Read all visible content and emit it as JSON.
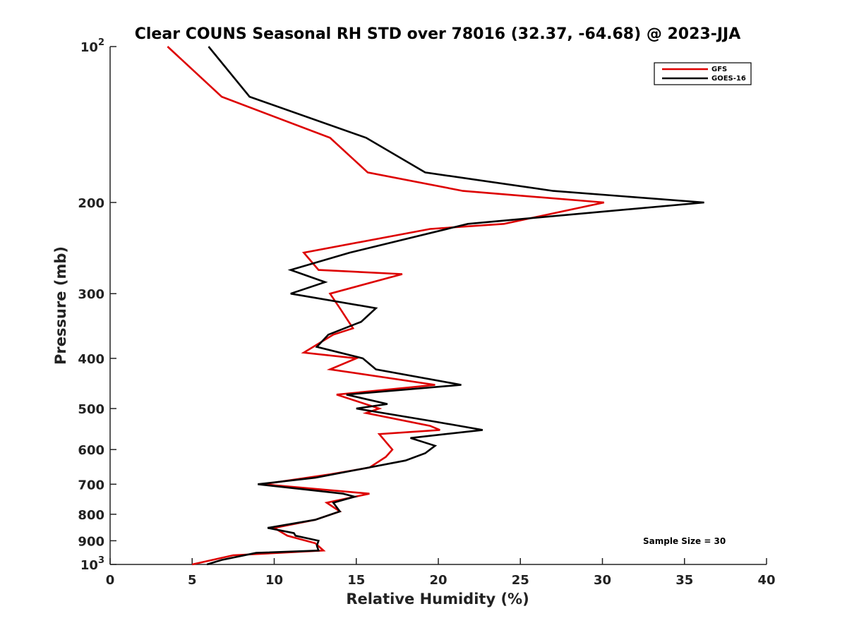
{
  "chart_data": {
    "type": "line",
    "title": "Clear COUNS Seasonal RH STD over 78016 (32.37, -64.68) @ 2023-JJA",
    "xlabel": "Relative Humidity (%)",
    "ylabel": "Pressure (mb)",
    "xlim": [
      0,
      40
    ],
    "ylim": [
      100,
      1000
    ],
    "yscale": "log",
    "y_reversed": true,
    "grid": false,
    "x_ticks": [
      0,
      5,
      10,
      15,
      20,
      25,
      30,
      35,
      40
    ],
    "y_ticks": [
      {
        "value": 100,
        "base": "10",
        "exp": "2"
      },
      {
        "value": 200,
        "label": "200"
      },
      {
        "value": 300,
        "label": "300"
      },
      {
        "value": 400,
        "label": "400"
      },
      {
        "value": 500,
        "label": "500"
      },
      {
        "value": 600,
        "label": "600"
      },
      {
        "value": 700,
        "label": "700"
      },
      {
        "value": 800,
        "label": "800"
      },
      {
        "value": 900,
        "label": "900"
      },
      {
        "value": 1000,
        "base": "10",
        "exp": "3"
      }
    ],
    "legend_position": "top-right",
    "annotation": "Sample Size = 30",
    "series": [
      {
        "name": "GFS",
        "color": "#dd0000",
        "points": [
          [
            3.5,
            100
          ],
          [
            6.8,
            125
          ],
          [
            13.4,
            150
          ],
          [
            15.7,
            175
          ],
          [
            21.5,
            190
          ],
          [
            30.1,
            200
          ],
          [
            24.0,
            220
          ],
          [
            19.5,
            225
          ],
          [
            11.8,
            250
          ],
          [
            12.7,
            270
          ],
          [
            17.8,
            275
          ],
          [
            13.4,
            300
          ],
          [
            14.0,
            320
          ],
          [
            14.8,
            350
          ],
          [
            13.6,
            360
          ],
          [
            11.8,
            390
          ],
          [
            15.0,
            400
          ],
          [
            13.4,
            420
          ],
          [
            19.8,
            450
          ],
          [
            13.8,
            470
          ],
          [
            16.4,
            500
          ],
          [
            15.6,
            510
          ],
          [
            19.5,
            540
          ],
          [
            20.1,
            550
          ],
          [
            16.4,
            560
          ],
          [
            17.0,
            590
          ],
          [
            17.2,
            600
          ],
          [
            16.8,
            620
          ],
          [
            15.8,
            650
          ],
          [
            13.4,
            670
          ],
          [
            9.3,
            700
          ],
          [
            15.8,
            730
          ],
          [
            13.2,
            760
          ],
          [
            14.0,
            790
          ],
          [
            12.5,
            820
          ],
          [
            10.0,
            850
          ],
          [
            10.8,
            880
          ],
          [
            12.5,
            910
          ],
          [
            13.0,
            940
          ],
          [
            7.5,
            960
          ],
          [
            5.0,
            1000
          ]
        ]
      },
      {
        "name": "GOES-16",
        "color": "#000000",
        "points": [
          [
            6.0,
            100
          ],
          [
            8.5,
            125
          ],
          [
            15.6,
            150
          ],
          [
            19.2,
            175
          ],
          [
            27.0,
            190
          ],
          [
            36.2,
            200
          ],
          [
            21.8,
            220
          ],
          [
            14.6,
            250
          ],
          [
            11.0,
            270
          ],
          [
            13.1,
            285
          ],
          [
            11.0,
            300
          ],
          [
            16.2,
            320
          ],
          [
            15.3,
            340
          ],
          [
            13.3,
            360
          ],
          [
            12.6,
            380
          ],
          [
            15.4,
            400
          ],
          [
            16.2,
            420
          ],
          [
            21.4,
            450
          ],
          [
            14.4,
            470
          ],
          [
            16.9,
            490
          ],
          [
            15.0,
            500
          ],
          [
            19.8,
            530
          ],
          [
            22.7,
            550
          ],
          [
            18.3,
            570
          ],
          [
            19.8,
            590
          ],
          [
            19.2,
            610
          ],
          [
            18.0,
            630
          ],
          [
            12.5,
            680
          ],
          [
            9.0,
            700
          ],
          [
            14.2,
            730
          ],
          [
            14.9,
            740
          ],
          [
            13.6,
            760
          ],
          [
            14.0,
            790
          ],
          [
            12.5,
            820
          ],
          [
            9.6,
            850
          ],
          [
            11.2,
            870
          ],
          [
            11.3,
            880
          ],
          [
            12.7,
            900
          ],
          [
            12.6,
            920
          ],
          [
            12.7,
            940
          ],
          [
            8.9,
            950
          ],
          [
            6.8,
            980
          ],
          [
            5.9,
            1000
          ]
        ]
      }
    ]
  }
}
